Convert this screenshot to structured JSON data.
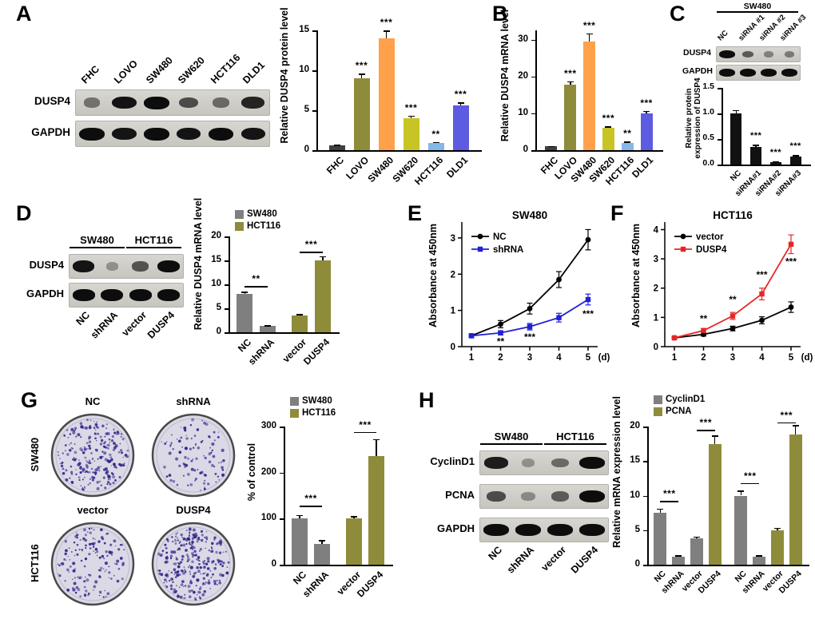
{
  "panels": {
    "A": {
      "letter": "A"
    },
    "B": {
      "letter": "B"
    },
    "C": {
      "letter": "C"
    },
    "D": {
      "letter": "D"
    },
    "E": {
      "letter": "E"
    },
    "F": {
      "letter": "F"
    },
    "G": {
      "letter": "G"
    },
    "H": {
      "letter": "H"
    }
  },
  "palette": {
    "gray": "#7f7f7f",
    "olive": "#8e8c3a",
    "orange": "#ffa14a",
    "yellow_green": "#c9c426",
    "light_blue": "#85b7e8",
    "blue_violet": "#5d5be0",
    "line_blue": "#2020d6",
    "line_red": "#e62626",
    "black_bar": "#111111"
  },
  "blots": {
    "A": {
      "lanes": [
        "FHC",
        "LOVO",
        "SW480",
        "SW620",
        "HCT116",
        "DLD1"
      ],
      "rows": [
        {
          "label": "DUSP4",
          "bands": [
            0.35,
            0.95,
            1,
            0.6,
            0.4,
            0.85
          ]
        },
        {
          "label": "GAPDH",
          "bands": [
            1,
            0.95,
            1,
            0.95,
            1,
            0.95
          ]
        }
      ]
    },
    "C": {
      "header": "SW480",
      "lanes": [
        "NC",
        "siRNA #1",
        "siRNA #2",
        "siRNA #3"
      ],
      "rows": [
        {
          "label": "DUSP4",
          "bands": [
            1,
            0.5,
            0.25,
            0.3
          ]
        },
        {
          "label": "GAPDH",
          "bands": [
            1,
            1,
            1,
            1
          ]
        }
      ]
    },
    "D": {
      "headers": [
        {
          "label": "SW480",
          "from": 0,
          "to": 1
        },
        {
          "label": "HCT116",
          "from": 2,
          "to": 3
        }
      ],
      "lanes": [
        "NC",
        "shRNA",
        "vector",
        "DUSP4"
      ],
      "rows": [
        {
          "label": "DUSP4",
          "bands": [
            0.95,
            0.15,
            0.55,
            1
          ]
        },
        {
          "label": "GAPDH",
          "bands": [
            1,
            1,
            1,
            1
          ]
        }
      ]
    },
    "H": {
      "headers": [
        {
          "label": "SW480",
          "from": 0,
          "to": 1
        },
        {
          "label": "HCT116",
          "from": 2,
          "to": 3
        }
      ],
      "lanes": [
        "NC",
        "shRNA",
        "vector",
        "DUSP4"
      ],
      "rows": [
        {
          "label": "CyclinD1",
          "bands": [
            0.9,
            0.15,
            0.4,
            1
          ]
        },
        {
          "label": "PCNA",
          "bands": [
            0.6,
            0.2,
            0.5,
            1
          ]
        },
        {
          "label": "GAPDH",
          "bands": [
            1,
            1,
            1,
            1
          ]
        }
      ]
    }
  },
  "colony_assay": {
    "rows": [
      {
        "cell_line": "SW480",
        "dishes": [
          {
            "label": "NC",
            "colony_density": 230
          },
          {
            "label": "shRNA",
            "colony_density": 100
          }
        ]
      },
      {
        "cell_line": "HCT116",
        "dishes": [
          {
            "label": "vector",
            "colony_density": 150
          },
          {
            "label": "DUSP4",
            "colony_density": 280
          }
        ]
      }
    ]
  },
  "chart_data": [
    {
      "id": "A",
      "type": "bar",
      "ylabel": "Relative DUSP4 protein level",
      "yticks": [
        0,
        5,
        10,
        15
      ],
      "ymax": 15,
      "categories": [
        "FHC",
        "LOVO",
        "SW480",
        "SW620",
        "HCT116",
        "DLD1"
      ],
      "values": [
        0.6,
        9,
        14,
        4,
        0.9,
        5.6
      ],
      "errors": [
        0.08,
        0.6,
        1,
        0.35,
        0.12,
        0.4
      ],
      "sig": [
        "",
        "***",
        "***",
        "***",
        "**",
        "***"
      ],
      "colors": [
        "#3f3f3f",
        "#8e8c3a",
        "#ffa14a",
        "#c9c426",
        "#85b7e8",
        "#5d5be0"
      ]
    },
    {
      "id": "B",
      "type": "bar",
      "ylabel": "Relative DUSP4 mRNA level",
      "yticks": [
        0,
        10,
        20,
        30
      ],
      "ymax": 30,
      "yscale": 32.5,
      "categories": [
        "FHC",
        "LOVO",
        "SW480",
        "SW620",
        "HCT116",
        "DLD1"
      ],
      "values": [
        1,
        17.8,
        29.5,
        6,
        2,
        10
      ],
      "errors": [
        0.1,
        0.9,
        2.2,
        0.5,
        0.3,
        0.7
      ],
      "sig": [
        "",
        "***",
        "***",
        "***",
        "**",
        "***"
      ],
      "colors": [
        "#3f3f3f",
        "#8e8c3a",
        "#ffa14a",
        "#c9c426",
        "#85b7e8",
        "#5d5be0"
      ]
    },
    {
      "id": "C",
      "type": "bar",
      "ylabel_lines": [
        "Relative protein",
        "expression of DUSP4"
      ],
      "yticks": [
        "0.0",
        "0.5",
        "1.0",
        "1.5"
      ],
      "ymax": 1.5,
      "categories": [
        "NC",
        "siRNA#1",
        "siRNA#2",
        "siRNA#3"
      ],
      "values": [
        1.0,
        0.35,
        0.05,
        0.15
      ],
      "errors": [
        0.07,
        0.04,
        0.02,
        0.03
      ],
      "sig": [
        "",
        "***",
        "***",
        "***"
      ],
      "colors": [
        "#111111",
        "#111111",
        "#111111",
        "#111111"
      ]
    },
    {
      "id": "D",
      "type": "bar",
      "ylabel": "Relative DUSP4 mRNA level",
      "yticks": [
        0,
        5,
        10,
        15,
        20
      ],
      "ymax": 20,
      "categories": [
        "NC",
        "shRNA",
        "vector",
        "DUSP4"
      ],
      "values": [
        8,
        1.3,
        3.5,
        15
      ],
      "errors": [
        0.5,
        0.15,
        0.3,
        0.9
      ],
      "colors": [
        "#7f7f7f",
        "#7f7f7f",
        "#8e8c3a",
        "#8e8c3a"
      ],
      "legend": [
        {
          "label": "SW480",
          "color": "#7f7f7f"
        },
        {
          "label": "HCT116",
          "color": "#8e8c3a"
        }
      ],
      "brackets": [
        {
          "from": 0,
          "to": 1,
          "label": "**",
          "y": 9.6
        },
        {
          "from": 2,
          "to": 3,
          "label": "***",
          "y": 16.8
        }
      ],
      "gap_after": [
        1
      ]
    },
    {
      "id": "E",
      "type": "line",
      "title": "SW480",
      "ylabel": "Absorbance at 450nm",
      "xunit": "(d)",
      "x": [
        1,
        2,
        3,
        4,
        5
      ],
      "yticks": [
        0,
        1,
        2,
        3
      ],
      "yscale": 3.35,
      "series": [
        {
          "name": "NC",
          "color": "#000000",
          "marker": "circle",
          "values": [
            0.3,
            0.62,
            1.05,
            1.85,
            2.95
          ],
          "errors": [
            0.05,
            0.1,
            0.15,
            0.22,
            0.28
          ]
        },
        {
          "name": "shRNA",
          "color": "#2020d6",
          "marker": "square",
          "values": [
            0.3,
            0.38,
            0.55,
            0.8,
            1.3
          ],
          "errors": [
            0.05,
            0.06,
            0.09,
            0.12,
            0.15
          ]
        }
      ],
      "sig": [
        {
          "x": 2,
          "y": 0.05,
          "label": "**"
        },
        {
          "x": 3,
          "y": 0.18,
          "label": "***"
        },
        {
          "x": 5,
          "y": 0.82,
          "label": "***"
        }
      ]
    },
    {
      "id": "F",
      "type": "line",
      "title": "HCT116",
      "ylabel": "Absorbance at 450nm",
      "xunit": "(d)",
      "x": [
        1,
        2,
        3,
        4,
        5
      ],
      "yticks": [
        0,
        1,
        2,
        3,
        4
      ],
      "yscale": 4.15,
      "series": [
        {
          "name": "vector",
          "color": "#000000",
          "marker": "circle",
          "values": [
            0.3,
            0.42,
            0.62,
            0.9,
            1.35
          ],
          "errors": [
            0.04,
            0.06,
            0.08,
            0.12,
            0.18
          ]
        },
        {
          "name": "DUSP4",
          "color": "#e62626",
          "marker": "square",
          "values": [
            0.3,
            0.55,
            1.05,
            1.8,
            3.5
          ],
          "errors": [
            0.04,
            0.07,
            0.12,
            0.2,
            0.32
          ]
        }
      ],
      "sig": [
        {
          "x": 2,
          "y": 0.85,
          "label": "**"
        },
        {
          "x": 3,
          "y": 1.5,
          "label": "**"
        },
        {
          "x": 4,
          "y": 2.35,
          "label": "***"
        },
        {
          "x": 5,
          "y": 2.8,
          "label": "***"
        }
      ]
    },
    {
      "id": "G",
      "type": "bar",
      "ylabel": "% of control",
      "yticks": [
        0,
        100,
        200,
        300
      ],
      "ymax": 300,
      "categories": [
        "NC",
        "shRNA",
        "vector",
        "DUSP4"
      ],
      "values": [
        100,
        45,
        100,
        235
      ],
      "errors": [
        8,
        8,
        5,
        38
      ],
      "colors": [
        "#7f7f7f",
        "#7f7f7f",
        "#8e8c3a",
        "#8e8c3a"
      ],
      "legend": [
        {
          "label": "SW480",
          "color": "#7f7f7f"
        },
        {
          "label": "HCT116",
          "color": "#8e8c3a"
        }
      ],
      "brackets": [
        {
          "from": 0,
          "to": 1,
          "label": "***",
          "y": 128
        },
        {
          "from": 2,
          "to": 3,
          "label": "***",
          "y": 288
        }
      ],
      "gap_after": [
        1
      ]
    },
    {
      "id": "H",
      "type": "bar",
      "ylabel": "Relative mRNA expression level",
      "yticks": [
        0,
        5,
        10,
        15,
        20
      ],
      "ymax": 20,
      "categories": [
        "NC",
        "shRNA",
        "vector",
        "DUSP4",
        "NC",
        "shRNA",
        "vector",
        "DUSP4"
      ],
      "values": [
        7.5,
        1.2,
        3.8,
        17.5,
        10,
        1.2,
        5,
        18.8
      ],
      "errors": [
        0.6,
        0.15,
        0.3,
        1.2,
        0.7,
        0.15,
        0.35,
        1.4
      ],
      "colors": [
        "#7f7f7f",
        "#7f7f7f",
        "#7f7f7f",
        "#8e8c3a",
        "#7f7f7f",
        "#7f7f7f",
        "#8e8c3a",
        "#8e8c3a"
      ],
      "legend": [
        {
          "label": "CyclinD1",
          "color": "#7f7f7f"
        },
        {
          "label": "PCNA",
          "color": "#8e8c3a"
        }
      ],
      "brackets": [
        {
          "from": 0,
          "to": 1,
          "label": "***",
          "y": 9.2
        },
        {
          "from": 2,
          "to": 3,
          "label": "***",
          "y": 19.5
        },
        {
          "from": 4,
          "to": 5,
          "label": "***",
          "y": 11.8
        },
        {
          "from": 6,
          "to": 7,
          "label": "***",
          "y": 20.6
        }
      ],
      "gap_after": [
        3
      ]
    }
  ]
}
